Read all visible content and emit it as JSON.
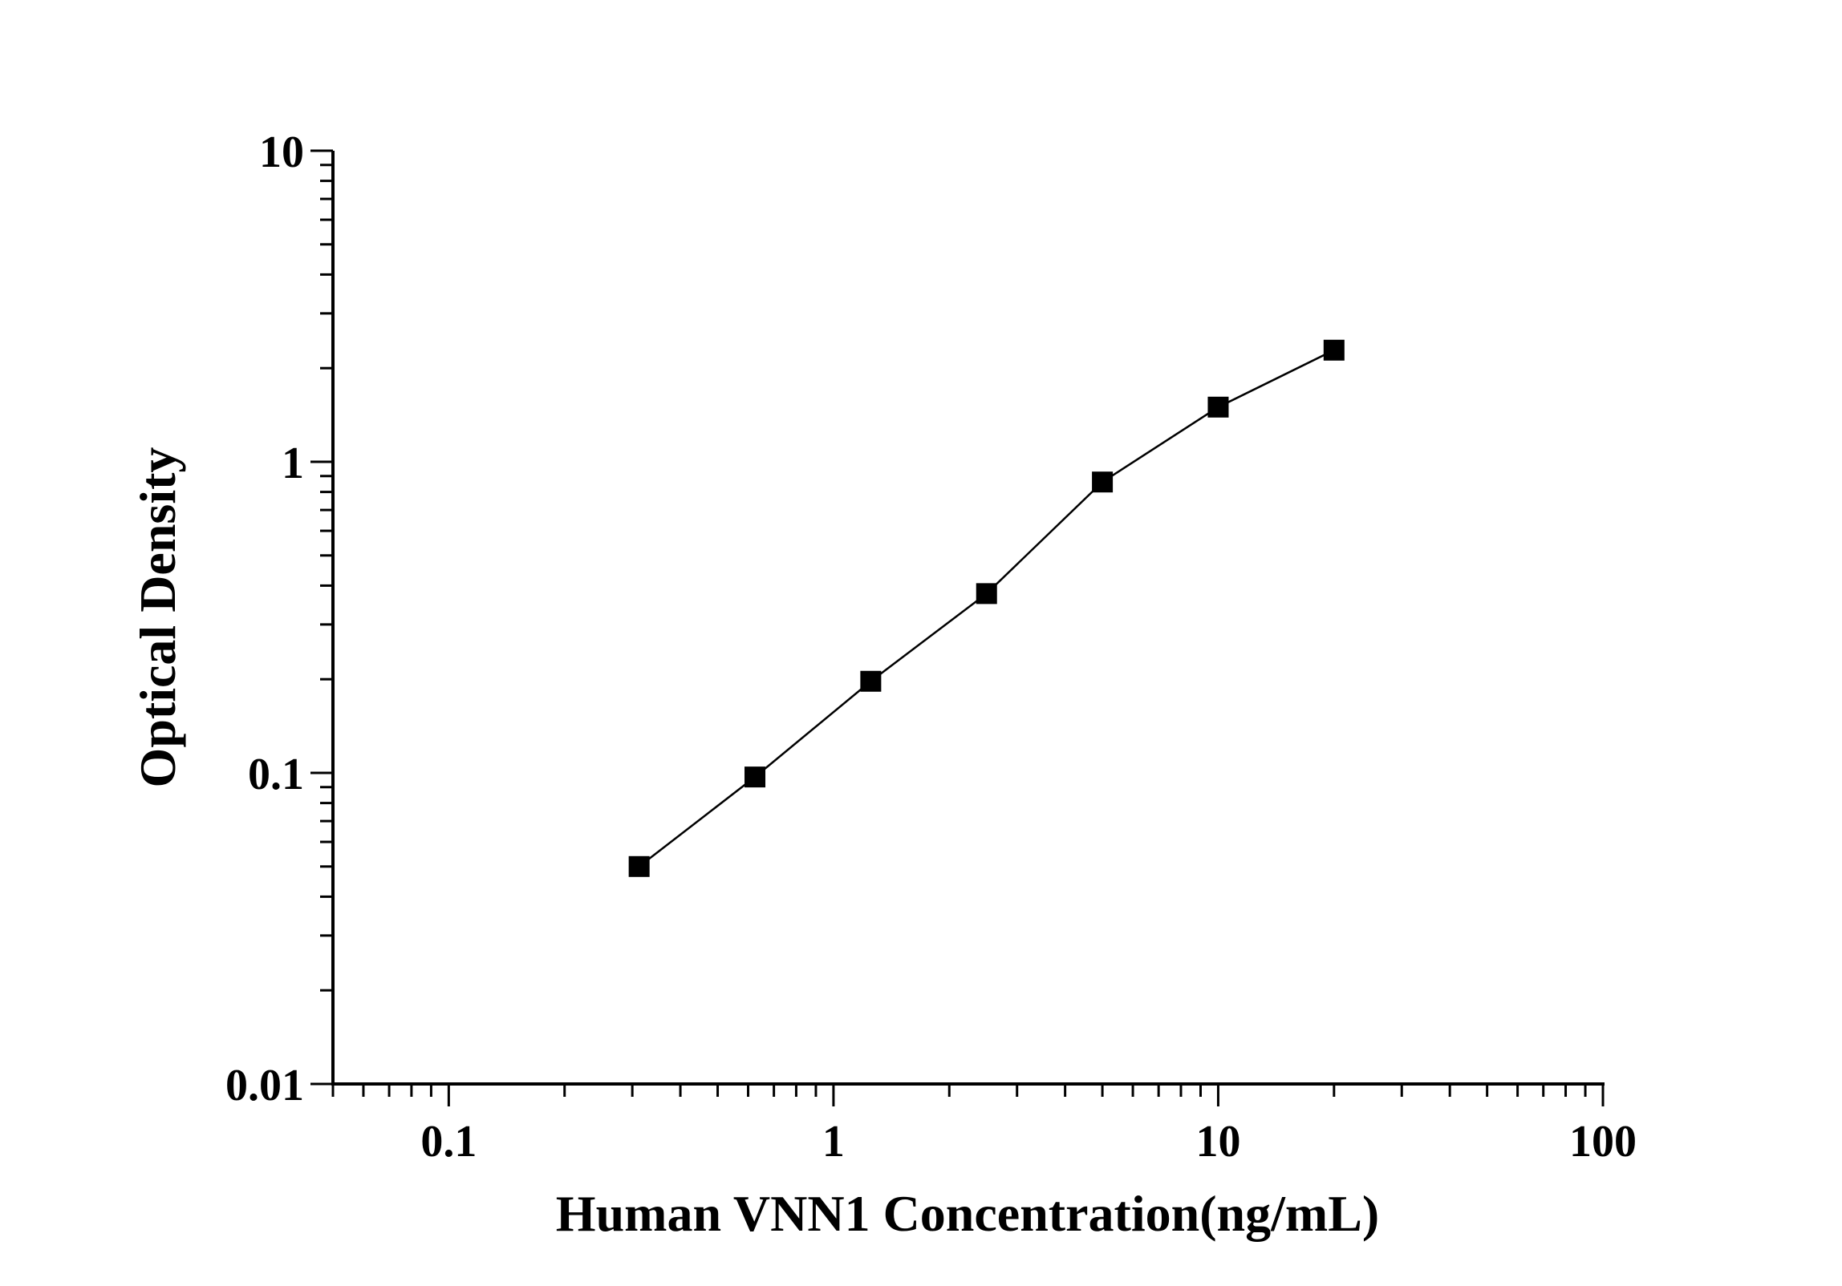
{
  "chart_data": {
    "type": "line",
    "title": "",
    "xlabel": "Human VNN1 Concentration(ng/mL)",
    "ylabel": "Optical Density",
    "xscale": "log",
    "yscale": "log",
    "xlim": [
      0.05,
      100
    ],
    "ylim": [
      0.01,
      10
    ],
    "x_ticks": [
      {
        "value": 0.1,
        "label": "0.1"
      },
      {
        "value": 1,
        "label": "1"
      },
      {
        "value": 10,
        "label": "10"
      },
      {
        "value": 100,
        "label": "100"
      }
    ],
    "y_ticks": [
      {
        "value": 0.01,
        "label": "0.01"
      },
      {
        "value": 0.1,
        "label": "0.1"
      },
      {
        "value": 1,
        "label": "1"
      },
      {
        "value": 10,
        "label": "10"
      }
    ],
    "grid": false,
    "marker": "square",
    "color": "#000000",
    "series": [
      {
        "x": [
          0.3125,
          0.625,
          1.25,
          2.5,
          5,
          10,
          20
        ],
        "y": [
          0.05,
          0.097,
          0.197,
          0.377,
          0.861,
          1.499,
          2.285
        ]
      }
    ]
  }
}
